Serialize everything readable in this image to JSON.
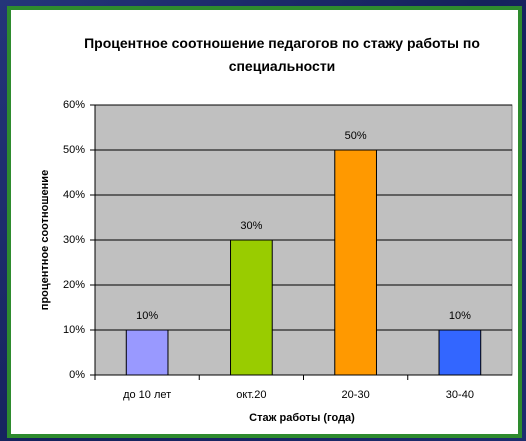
{
  "chart_data": {
    "type": "bar",
    "title": "Процентное соотношение педагогов по стажу работы по специальности",
    "x_label": "Стаж работы (года)",
    "y_label": "процентное соотношение",
    "categories": [
      "до 10 лет",
      "окт.20",
      "20-30",
      "30-40"
    ],
    "values": [
      10,
      30,
      50,
      10
    ],
    "value_labels": [
      "10%",
      "30%",
      "50%",
      "10%"
    ],
    "colors": [
      "#9999ff",
      "#99cc00",
      "#ff9900",
      "#3366ff"
    ],
    "ylim": [
      0,
      60
    ],
    "yticks": [
      {
        "value": 0,
        "label": "0%"
      },
      {
        "value": 10,
        "label": "10%"
      },
      {
        "value": 20,
        "label": "20%"
      },
      {
        "value": 30,
        "label": "30%"
      },
      {
        "value": 40,
        "label": "40%"
      },
      {
        "value": 50,
        "label": "50%"
      },
      {
        "value": 60,
        "label": "60%"
      }
    ],
    "grid": true
  }
}
